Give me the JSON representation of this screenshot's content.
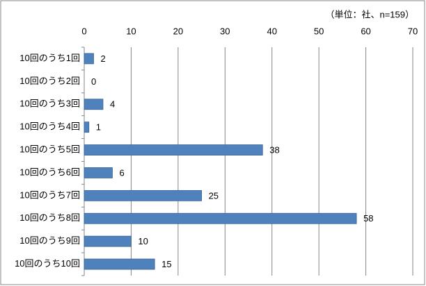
{
  "chart_data": {
    "type": "bar",
    "orientation": "horizontal",
    "unit_note": "（単位：社、n=159）",
    "categories": [
      "10回のうち1回",
      "10回のうち2回",
      "10回のうち3回",
      "10回のうち4回",
      "10回のうち5回",
      "10回のうち6回",
      "10回のうち7回",
      "10回のうち8回",
      "10回のうち9回",
      "10回のうち10回"
    ],
    "values": [
      2,
      0,
      4,
      1,
      38,
      6,
      25,
      58,
      10,
      15
    ],
    "color": "#4f81bd",
    "xlim": [
      0,
      70
    ],
    "xticks": [
      0,
      10,
      20,
      30,
      40,
      50,
      60,
      70
    ],
    "grid": true
  }
}
